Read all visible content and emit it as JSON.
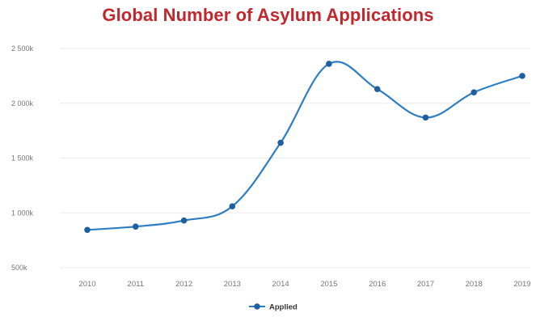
{
  "chart_data": {
    "type": "line",
    "title": "Global Number of Asylum Applications",
    "xlabel": "",
    "ylabel": "",
    "categories": [
      "2010",
      "2011",
      "2012",
      "2013",
      "2014",
      "2015",
      "2016",
      "2017",
      "2018",
      "2019"
    ],
    "series": [
      {
        "name": "Applied",
        "color": "#2e7fc2",
        "marker_color": "#1f5fa0",
        "values": [
          845000,
          875000,
          930000,
          1060000,
          1640000,
          2360000,
          2130000,
          1870000,
          2100000,
          2250000
        ]
      }
    ],
    "y_ticks": [
      {
        "value": 500000,
        "label": "500k"
      },
      {
        "value": 1000000,
        "label": "1 000k"
      },
      {
        "value": 1500000,
        "label": "1 500k"
      },
      {
        "value": 2000000,
        "label": "2 000k"
      },
      {
        "value": 2500000,
        "label": "2 500k"
      }
    ],
    "ylim": [
      500000,
      2500000
    ],
    "grid": true,
    "legend_position": "bottom"
  }
}
